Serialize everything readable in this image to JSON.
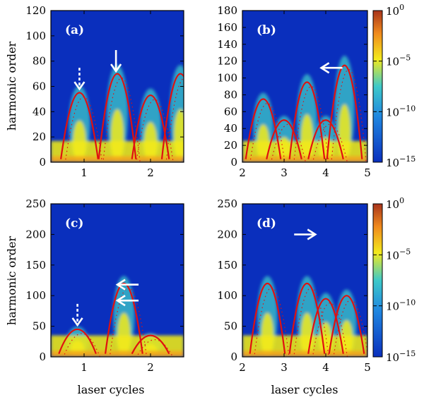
{
  "figure": {
    "ylabel": "harmonic order",
    "xlabel": "laser cycles",
    "colorbar_ticks": [
      {
        "base": "10",
        "exp": "0"
      },
      {
        "base": "10",
        "exp": "−5"
      },
      {
        "base": "10",
        "exp": "−10"
      },
      {
        "base": "10",
        "exp": "−15"
      }
    ],
    "colors": {
      "background": "#0a2fbd",
      "cutoff_curve": "#e01010",
      "arrow": "#ffffff"
    }
  },
  "chart_data": [
    {
      "type": "heatmap",
      "panel": "(a)",
      "xlim": [
        0.5,
        2.5
      ],
      "ylim": [
        0,
        120
      ],
      "xticks": [
        1,
        2
      ],
      "yticks": [
        0,
        20,
        40,
        60,
        80,
        100,
        120
      ],
      "ylabel": "harmonic order",
      "xlabel": "",
      "peaks": [
        {
          "t": 0.93,
          "h": 55
        },
        {
          "t": 1.5,
          "h": 70
        },
        {
          "t": 2.0,
          "h": 53
        },
        {
          "t": 2.45,
          "h": 70
        }
      ],
      "arrows": [
        {
          "t": 0.93,
          "h": 58,
          "dir": "down",
          "style": "dashed"
        },
        {
          "t": 1.48,
          "h": 72,
          "dir": "down",
          "style": "solid"
        }
      ]
    },
    {
      "type": "heatmap",
      "panel": "(b)",
      "xlim": [
        2,
        5
      ],
      "ylim": [
        0,
        180
      ],
      "xticks": [
        2,
        3,
        4,
        5
      ],
      "yticks": [
        0,
        20,
        40,
        60,
        80,
        100,
        120,
        140,
        160,
        180
      ],
      "ylabel": "",
      "xlabel": "",
      "peaks": [
        {
          "t": 2.5,
          "h": 75
        },
        {
          "t": 3.0,
          "h": 50
        },
        {
          "t": 3.55,
          "h": 95
        },
        {
          "t": 4.0,
          "h": 50
        },
        {
          "t": 4.45,
          "h": 115
        }
      ],
      "arrows": [
        {
          "t": 4.4,
          "h": 112,
          "dir": "left",
          "style": "solid"
        }
      ]
    },
    {
      "type": "heatmap",
      "panel": "(c)",
      "xlim": [
        0.5,
        2.5
      ],
      "ylim": [
        0,
        250
      ],
      "xticks": [
        1,
        2
      ],
      "yticks": [
        0,
        50,
        100,
        150,
        200,
        250
      ],
      "ylabel": "harmonic order",
      "xlabel": "laser cycles",
      "peaks": [
        {
          "t": 0.9,
          "h": 45
        },
        {
          "t": 1.6,
          "h": 120
        },
        {
          "t": 2.0,
          "h": 35
        }
      ],
      "arrows": [
        {
          "t": 0.9,
          "h": 52,
          "dir": "down",
          "style": "dashed"
        },
        {
          "t": 1.82,
          "h": 118,
          "dir": "left",
          "style": "solid"
        },
        {
          "t": 1.82,
          "h": 92,
          "dir": "left",
          "style": "solid"
        }
      ]
    },
    {
      "type": "heatmap",
      "panel": "(d)",
      "xlim": [
        2,
        5
      ],
      "ylim": [
        0,
        250
      ],
      "xticks": [
        2,
        3,
        4,
        5
      ],
      "yticks": [
        0,
        50,
        100,
        150,
        200,
        250
      ],
      "ylabel": "",
      "xlabel": "laser cycles",
      "peaks": [
        {
          "t": 2.6,
          "h": 120
        },
        {
          "t": 3.55,
          "h": 120
        },
        {
          "t": 4.0,
          "h": 95
        },
        {
          "t": 4.5,
          "h": 100
        }
      ],
      "arrows": [
        {
          "t": 3.75,
          "h": 200,
          "dir": "right",
          "style": "solid"
        }
      ]
    }
  ]
}
